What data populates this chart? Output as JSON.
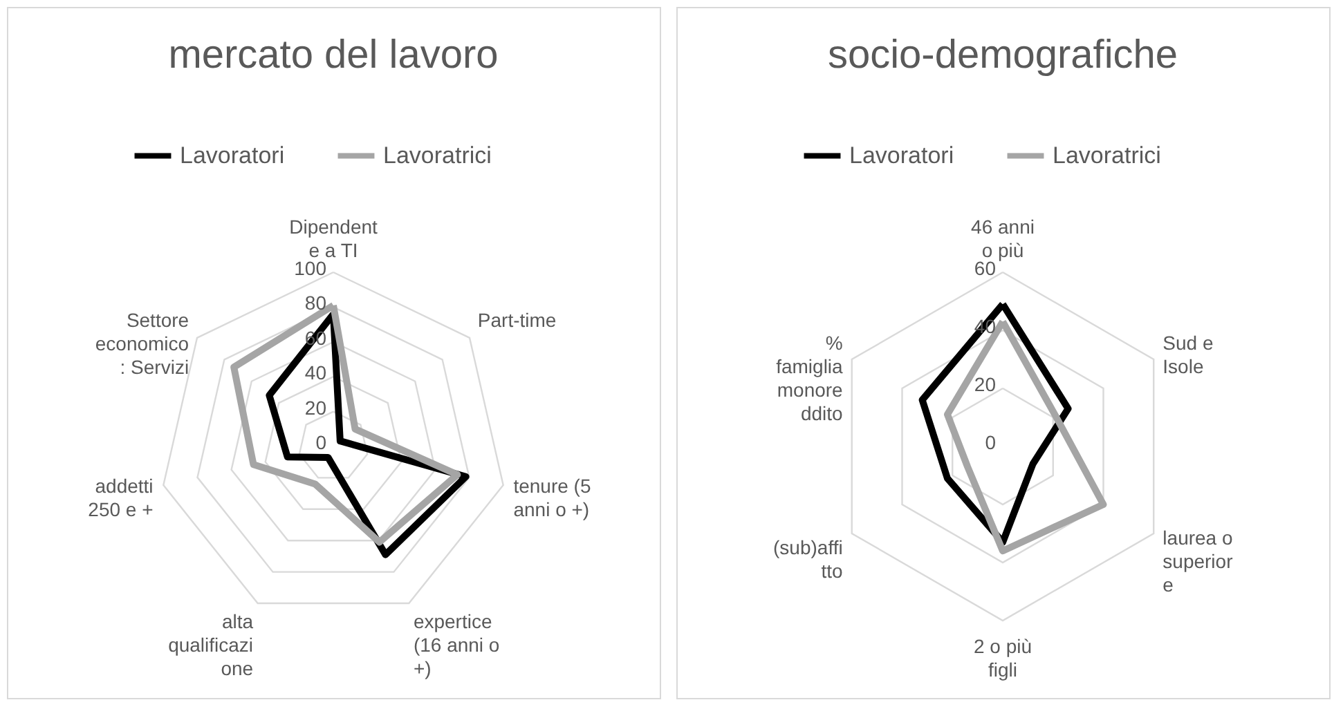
{
  "chart_data": [
    {
      "type": "radar",
      "title": "mercato del lavoro",
      "categories": [
        "Dipendent\ne a TI",
        "Part-time",
        "tenure (5\nanni o +)",
        "expertice\n(16 anni o\n+)",
        "alta\nqualificazi\none",
        "addetti\n250 e +",
        "Settore\neconomico\n: Servizi"
      ],
      "series": [
        {
          "name": "Lavoratori",
          "color": "#000000",
          "values": [
            76,
            5,
            78,
            69,
            7,
            27,
            47
          ]
        },
        {
          "name": "Lavoratrici",
          "color": "#a5a5a5",
          "values": [
            81,
            16,
            73,
            61,
            24,
            47,
            73
          ]
        }
      ],
      "ylim": [
        0,
        100
      ],
      "yticks": [
        0,
        20,
        40,
        60,
        80,
        100
      ],
      "grid": true,
      "legend": "top"
    },
    {
      "type": "radar",
      "title": "socio-demografiche",
      "categories": [
        "46 anni\no più",
        "Sud e\nIsole",
        "laurea o\nsuperior\ne",
        "2 o più\nfigli",
        "(sub)affi\ntto",
        "%\nfamiglia\nmonore\nddito"
      ],
      "series": [
        {
          "name": "Lavoratori",
          "color": "#000000",
          "values": [
            49,
            26,
            12,
            33,
            22,
            32
          ]
        },
        {
          "name": "Lavoratrici",
          "color": "#a5a5a5",
          "values": [
            43,
            21,
            40,
            36,
            14,
            22
          ]
        }
      ],
      "ylim": [
        0,
        60
      ],
      "yticks": [
        0,
        20,
        40,
        60
      ],
      "grid": true,
      "legend": "top"
    }
  ]
}
